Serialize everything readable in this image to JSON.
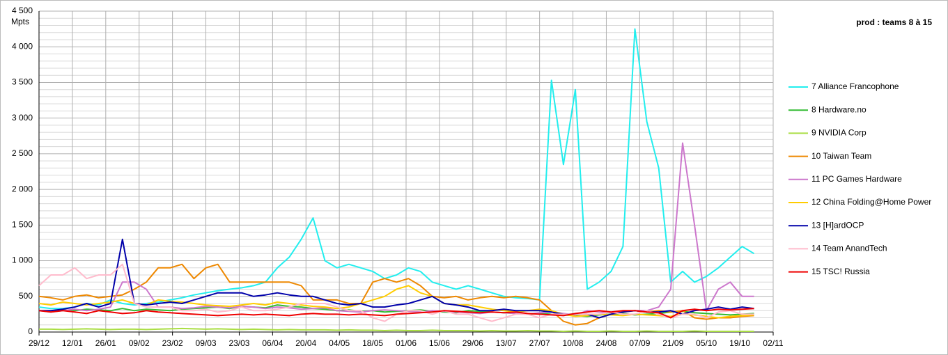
{
  "chart_data": {
    "type": "line",
    "title": "prod : teams 8 à 15",
    "y_label": "Mpts",
    "x": [
      0,
      5,
      10,
      15,
      20,
      25,
      30,
      35,
      40,
      45,
      50,
      55,
      60,
      65,
      70,
      75,
      80,
      85,
      90,
      95,
      100,
      105,
      110,
      115,
      120,
      125,
      130,
      135,
      140,
      145,
      150,
      155,
      160,
      165,
      170,
      175,
      180,
      185,
      190,
      195,
      200,
      205,
      210,
      215,
      220,
      225,
      230,
      235,
      240,
      245,
      250,
      255,
      260,
      265,
      270,
      275,
      280,
      285,
      290,
      295,
      300
    ],
    "xlim": [
      0,
      308
    ],
    "xticks": [
      {
        "value": 0,
        "label": "29/12"
      },
      {
        "value": 14,
        "label": "12/01"
      },
      {
        "value": 28,
        "label": "26/01"
      },
      {
        "value": 42,
        "label": "09/02"
      },
      {
        "value": 56,
        "label": "23/02"
      },
      {
        "value": 70,
        "label": "09/03"
      },
      {
        "value": 84,
        "label": "23/03"
      },
      {
        "value": 98,
        "label": "06/04"
      },
      {
        "value": 112,
        "label": "20/04"
      },
      {
        "value": 126,
        "label": "04/05"
      },
      {
        "value": 140,
        "label": "18/05"
      },
      {
        "value": 154,
        "label": "01/06"
      },
      {
        "value": 168,
        "label": "15/06"
      },
      {
        "value": 182,
        "label": "29/06"
      },
      {
        "value": 196,
        "label": "13/07"
      },
      {
        "value": 210,
        "label": "27/07"
      },
      {
        "value": 224,
        "label": "10/08"
      },
      {
        "value": 238,
        "label": "24/08"
      },
      {
        "value": 252,
        "label": "07/09"
      },
      {
        "value": 266,
        "label": "21/09"
      },
      {
        "value": 280,
        "label": "05/10"
      },
      {
        "value": 294,
        "label": "19/10"
      },
      {
        "value": 308,
        "label": "02/11"
      }
    ],
    "ylim": [
      0,
      4500
    ],
    "yticks": [
      0,
      500,
      {
        "value": 1000,
        "label": "1 000"
      },
      {
        "value": 1500,
        "label": "1 500"
      },
      {
        "value": 2000,
        "label": "2 000"
      },
      {
        "value": 2500,
        "label": "2 500"
      },
      {
        "value": 3000,
        "label": "3 000"
      },
      {
        "value": 3500,
        "label": "3 500"
      },
      {
        "value": 4000,
        "label": "4 000"
      },
      {
        "value": 4500,
        "label": "4 500"
      }
    ],
    "grid": true,
    "legend": "right",
    "series": [
      {
        "name": "7 Alliance Francophone",
        "color": "#22eeee",
        "values": [
          350,
          330,
          330,
          350,
          400,
          380,
          450,
          400,
          380,
          400,
          420,
          450,
          480,
          520,
          550,
          580,
          600,
          620,
          650,
          700,
          900,
          1050,
          1300,
          1600,
          1000,
          900,
          950,
          900,
          850,
          750,
          800,
          900,
          850,
          700,
          650,
          600,
          650,
          600,
          550,
          500,
          480,
          470,
          450,
          3530,
          2350,
          3400,
          600,
          700,
          850,
          1200,
          4250,
          2950,
          2300,
          700,
          850,
          700,
          780,
          900,
          1050,
          1200,
          1100
        ]
      },
      {
        "name": "8 Hardware.no",
        "color": "#33bb33",
        "values": [
          300,
          290,
          310,
          300,
          320,
          310,
          300,
          330,
          300,
          320,
          310,
          300,
          320,
          330,
          340,
          350,
          330,
          360,
          350,
          340,
          380,
          360,
          350,
          330,
          320,
          300,
          310,
          290,
          300,
          280,
          290,
          300,
          310,
          290,
          280,
          270,
          300,
          290,
          280,
          270,
          260,
          250,
          260,
          250,
          240,
          230,
          220,
          240,
          250,
          260,
          240,
          250,
          260,
          280,
          290,
          270,
          260,
          250,
          240,
          250,
          260
        ]
      },
      {
        "name": "9 NVIDIA Corp",
        "color": "#aade44",
        "values": [
          40,
          40,
          35,
          40,
          45,
          40,
          35,
          40,
          40,
          35,
          40,
          45,
          50,
          45,
          40,
          45,
          40,
          35,
          40,
          35,
          30,
          35,
          30,
          30,
          30,
          25,
          30,
          25,
          25,
          20,
          25,
          20,
          20,
          25,
          20,
          20,
          20,
          15,
          20,
          15,
          15,
          20,
          15,
          15,
          10,
          15,
          10,
          10,
          15,
          10,
          10,
          15,
          10,
          10,
          10,
          15,
          10,
          10,
          10,
          10,
          10
        ]
      },
      {
        "name": "10 Taiwan Team",
        "color": "#ee8800",
        "values": [
          500,
          480,
          450,
          500,
          520,
          480,
          500,
          520,
          600,
          700,
          900,
          900,
          950,
          750,
          900,
          950,
          700,
          700,
          700,
          700,
          700,
          700,
          650,
          450,
          450,
          450,
          400,
          400,
          700,
          750,
          700,
          750,
          650,
          500,
          480,
          500,
          450,
          480,
          500,
          480,
          500,
          480,
          450,
          300,
          150,
          100,
          120,
          200,
          250,
          280,
          300,
          280,
          300,
          280,
          300,
          200,
          180,
          200,
          200,
          220,
          230
        ]
      },
      {
        "name": "11 PC Games Hardware",
        "color": "#cc77cc",
        "values": [
          300,
          280,
          300,
          320,
          300,
          320,
          350,
          700,
          700,
          600,
          350,
          350,
          330,
          340,
          360,
          350,
          340,
          360,
          350,
          330,
          350,
          340,
          320,
          330,
          340,
          300,
          290,
          280,
          300,
          310,
          300,
          290,
          280,
          300,
          290,
          280,
          270,
          260,
          280,
          270,
          260,
          250,
          270,
          280,
          260,
          240,
          300,
          280,
          270,
          290,
          300,
          300,
          350,
          600,
          2650,
          1500,
          300,
          600,
          700,
          500,
          500
        ]
      },
      {
        "name": "12 China Folding@Home Power",
        "color": "#ffcc00",
        "values": [
          400,
          380,
          420,
          400,
          380,
          400,
          420,
          450,
          400,
          380,
          450,
          430,
          420,
          400,
          380,
          370,
          360,
          380,
          400,
          380,
          420,
          400,
          380,
          360,
          350,
          330,
          350,
          400,
          450,
          500,
          600,
          650,
          550,
          500,
          400,
          380,
          380,
          350,
          320,
          300,
          280,
          300,
          320,
          300,
          250,
          220,
          230,
          250,
          240,
          230,
          250,
          240,
          230,
          220,
          250,
          240,
          220,
          200,
          220,
          230,
          240
        ]
      },
      {
        "name": "13 [H]ardOCP",
        "color": "#0000aa",
        "values": [
          300,
          300,
          320,
          350,
          400,
          350,
          400,
          1300,
          400,
          380,
          400,
          420,
          400,
          450,
          500,
          550,
          550,
          550,
          500,
          520,
          550,
          520,
          500,
          500,
          450,
          400,
          380,
          400,
          350,
          350,
          380,
          400,
          450,
          500,
          400,
          380,
          350,
          300,
          300,
          320,
          300,
          300,
          300,
          280,
          250,
          250,
          250,
          200,
          250,
          280,
          300,
          280,
          280,
          300,
          250,
          300,
          320,
          350,
          320,
          350,
          330
        ]
      },
      {
        "name": "14 Team AnandTech",
        "color": "#ffbbcc",
        "values": [
          650,
          800,
          800,
          900,
          750,
          800,
          800,
          950,
          400,
          350,
          350,
          350,
          300,
          300,
          320,
          280,
          300,
          350,
          300,
          300,
          320,
          350,
          400,
          400,
          400,
          350,
          300,
          300,
          200,
          150,
          250,
          300,
          300,
          250,
          300,
          250,
          250,
          200,
          150,
          200,
          250,
          250,
          200,
          250,
          250,
          250,
          250,
          250,
          280,
          250,
          250,
          300,
          250,
          200,
          250,
          250,
          200,
          280,
          300,
          250,
          250
        ]
      },
      {
        "name": "15 TSC! Russia",
        "color": "#ee0000",
        "values": [
          300,
          280,
          300,
          280,
          260,
          300,
          280,
          260,
          270,
          300,
          280,
          270,
          260,
          250,
          240,
          230,
          240,
          250,
          240,
          250,
          240,
          230,
          250,
          260,
          250,
          250,
          240,
          250,
          240,
          230,
          250,
          260,
          270,
          280,
          300,
          290,
          280,
          270,
          280,
          270,
          280,
          260,
          250,
          240,
          230,
          260,
          280,
          300,
          280,
          300,
          300,
          280,
          270,
          200,
          300,
          320,
          300,
          320,
          310,
          320,
          330
        ]
      }
    ]
  }
}
